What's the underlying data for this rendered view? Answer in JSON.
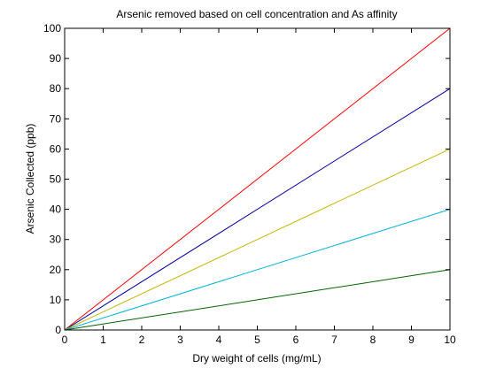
{
  "chart_data": {
    "type": "line",
    "title": "Arsenic removed based on cell concentration and As affinity",
    "xlabel": "Dry weight of cells (mg/mL)",
    "ylabel": "Arsenic Collected (ppb)",
    "xlim": [
      0,
      10
    ],
    "ylim": [
      0,
      100
    ],
    "xticks": [
      0,
      1,
      2,
      3,
      4,
      5,
      6,
      7,
      8,
      9,
      10
    ],
    "yticks": [
      0,
      10,
      20,
      30,
      40,
      50,
      60,
      70,
      80,
      90,
      100
    ],
    "grid": false,
    "legend": "none",
    "series": [
      {
        "color": "#ff0000",
        "x": [
          0,
          10
        ],
        "y": [
          0,
          100
        ]
      },
      {
        "color": "#0000a0",
        "x": [
          0,
          10
        ],
        "y": [
          0,
          80
        ]
      },
      {
        "color": "#c8b400",
        "x": [
          0,
          10
        ],
        "y": [
          0,
          60
        ]
      },
      {
        "color": "#00b4d8",
        "x": [
          0,
          10
        ],
        "y": [
          0,
          40
        ]
      },
      {
        "color": "#006400",
        "x": [
          0,
          10
        ],
        "y": [
          0,
          20
        ]
      }
    ]
  }
}
